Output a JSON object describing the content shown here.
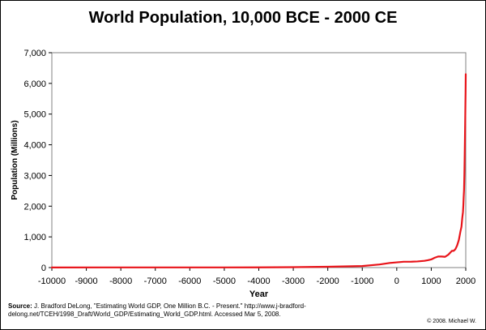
{
  "chart_data": {
    "type": "line",
    "title": "World Population, 10,000 BCE - 2000 CE",
    "xlabel": "Year",
    "ylabel": "Population (Millions)",
    "xlim": [
      -10000,
      2000
    ],
    "ylim": [
      0,
      7000
    ],
    "x_ticks": [
      -10000,
      -9000,
      -8000,
      -7000,
      -6000,
      -5000,
      -4000,
      -3000,
      -2000,
      -1000,
      0,
      1000,
      2000
    ],
    "x_tick_labels": [
      "-10000",
      "-9000",
      "-8000",
      "-7000",
      "-6000",
      "-5000",
      "-4000",
      "-3000",
      "-2000",
      "-1000",
      "0",
      "1000",
      "2000"
    ],
    "y_ticks": [
      0,
      1000,
      2000,
      3000,
      4000,
      5000,
      6000,
      7000
    ],
    "y_tick_labels": [
      "0",
      "1,000",
      "2,000",
      "3,000",
      "4,000",
      "5,000",
      "6,000",
      "7,000"
    ],
    "grid": false,
    "series": [
      {
        "name": "World Population",
        "color": "#e8141a",
        "x": [
          -10000,
          -8000,
          -6000,
          -5000,
          -4000,
          -3000,
          -2000,
          -1000,
          -500,
          -200,
          0,
          200,
          400,
          600,
          800,
          900,
          1000,
          1100,
          1200,
          1300,
          1400,
          1500,
          1600,
          1650,
          1700,
          1750,
          1800,
          1850,
          1875,
          1900,
          1920,
          1930,
          1940,
          1950,
          1960,
          1970,
          1975,
          1980,
          1985,
          1990,
          1995,
          2000
        ],
        "y": [
          4,
          5,
          5,
          5,
          7,
          14,
          27,
          50,
          100,
          150,
          170,
          190,
          190,
          200,
          220,
          240,
          265,
          320,
          360,
          360,
          350,
          425,
          545,
          545,
          600,
          720,
          900,
          1200,
          1325,
          1625,
          1813,
          2020,
          2295,
          2516,
          3020,
          3698,
          4079,
          4448,
          4851,
          5292,
          5700,
          6300
        ]
      }
    ]
  },
  "source": {
    "label": "Source:",
    "text": "J. Bradford DeLong, \"Estimating World GDP, One Million B.C. - Present.\" http://www.j-bradford-delong.net/TCEH/1998_Draft/World_GDP/Estimating_World_GDP.html. Accessed Mar 5, 2008."
  },
  "copyright": "© 2008. Michael W."
}
